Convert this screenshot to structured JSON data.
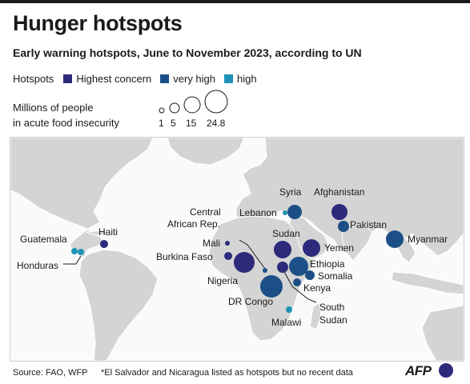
{
  "title": "Hunger hotspots",
  "subtitle": "Early warning hotspots, June to November 2023, according to UN",
  "legend": {
    "label": "Hotspots",
    "items": [
      {
        "label": "Highest concern",
        "color": "#2d2a7b"
      },
      {
        "label": "very high",
        "color": "#1c4f86"
      },
      {
        "label": "high",
        "color": "#1e93b5"
      }
    ]
  },
  "size_legend": {
    "title_line1": "Millions of people",
    "title_line2": "in acute food insecurity",
    "values": [
      "1",
      "5",
      "15",
      "24.8"
    ]
  },
  "labels": {
    "guatemala": "Guatemala",
    "honduras": "Honduras",
    "haiti": "Haiti",
    "car_line1": "Central",
    "car_line2": "African Rep.",
    "mali": "Mali",
    "burkina": "Burkina Faso",
    "nigeria": "Nigeria",
    "drc": "DR Congo",
    "syria": "Syria",
    "lebanon": "Lebanon",
    "afghanistan": "Afghanistan",
    "pakistan": "Pakistan",
    "myanmar": "Myanmar",
    "sudan": "Sudan",
    "yemen": "Yemen",
    "ethiopia": "Ethiopia",
    "somalia": "Somalia",
    "kenya": "Kenya",
    "south_sudan_line1": "South",
    "south_sudan_line2": "Sudan",
    "malawi": "Malawi"
  },
  "hotspots": [
    {
      "name": "Guatemala",
      "concern": "high"
    },
    {
      "name": "Honduras",
      "concern": "high"
    },
    {
      "name": "Haiti",
      "concern": "Highest concern"
    },
    {
      "name": "Mali",
      "concern": "Highest concern"
    },
    {
      "name": "Burkina Faso",
      "concern": "Highest concern"
    },
    {
      "name": "Nigeria",
      "concern": "Highest concern"
    },
    {
      "name": "Central African Rep.",
      "concern": "very high"
    },
    {
      "name": "DR Congo",
      "concern": "very high"
    },
    {
      "name": "Sudan",
      "concern": "Highest concern"
    },
    {
      "name": "South Sudan",
      "concern": "Highest concern"
    },
    {
      "name": "Ethiopia",
      "concern": "very high"
    },
    {
      "name": "Somalia",
      "concern": "very high"
    },
    {
      "name": "Kenya",
      "concern": "very high"
    },
    {
      "name": "Malawi",
      "concern": "high"
    },
    {
      "name": "Yemen",
      "concern": "Highest concern"
    },
    {
      "name": "Syria",
      "concern": "very high"
    },
    {
      "name": "Lebanon",
      "concern": "high"
    },
    {
      "name": "Afghanistan",
      "concern": "Highest concern"
    },
    {
      "name": "Pakistan",
      "concern": "very high"
    },
    {
      "name": "Myanmar",
      "concern": "very high"
    }
  ],
  "source": "Source: FAO, WFP",
  "note": "*El Salvador and Nicaragua listed as hotspots but no recent data",
  "brand": "AFP"
}
